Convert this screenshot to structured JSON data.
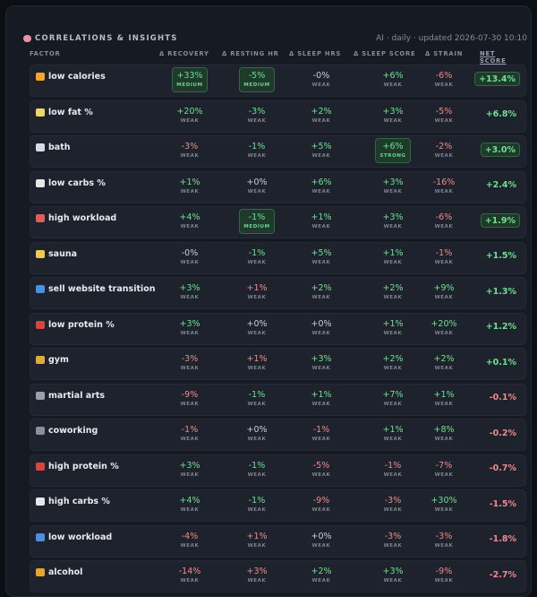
{
  "header": {
    "title": "CORRELATIONS & INSIGHTS",
    "meta": "AI · daily · updated 2026-07-30 10:10"
  },
  "columns": {
    "factor": "FACTOR",
    "recovery": "Δ RECOVERY",
    "resting_hr": "Δ RESTING HR",
    "sleep_hrs": "Δ SLEEP HRS",
    "sleep_score": "Δ SLEEP SCORE",
    "strain": "Δ STRAIN",
    "net_score": "NET SCORE"
  },
  "rows": [
    {
      "factor": "low calories",
      "icon": "fire-icon",
      "icon_color": "#f5a623",
      "cells": [
        [
          "+33%",
          "MEDIUM",
          "pos",
          true
        ],
        [
          "-5%",
          "MEDIUM",
          "pos",
          true
        ],
        [
          "-0%",
          "WEAK",
          "neu",
          false
        ],
        [
          "+6%",
          "WEAK",
          "pos",
          false
        ],
        [
          "-6%",
          "WEAK",
          "neg",
          false
        ]
      ],
      "net": "+13.4%",
      "net_tone": "pos",
      "net_hl": true
    },
    {
      "factor": "low fat %",
      "icon": "butter-icon",
      "icon_color": "#f3d46b",
      "cells": [
        [
          "+20%",
          "WEAK",
          "pos",
          false
        ],
        [
          "-3%",
          "WEAK",
          "pos",
          false
        ],
        [
          "+2%",
          "WEAK",
          "pos",
          false
        ],
        [
          "+3%",
          "WEAK",
          "pos",
          false
        ],
        [
          "-5%",
          "WEAK",
          "neg",
          false
        ]
      ],
      "net": "+6.8%",
      "net_tone": "pos",
      "net_hl": false
    },
    {
      "factor": "bath",
      "icon": "bath-icon",
      "icon_color": "#d7dde6",
      "cells": [
        [
          "-3%",
          "WEAK",
          "neg",
          false
        ],
        [
          "-1%",
          "WEAK",
          "pos",
          false
        ],
        [
          "+5%",
          "WEAK",
          "pos",
          false
        ],
        [
          "+6%",
          "STRONG",
          "pos",
          true
        ],
        [
          "-2%",
          "WEAK",
          "neg",
          false
        ]
      ],
      "net": "+3.0%",
      "net_tone": "pos",
      "net_hl": true
    },
    {
      "factor": "low carbs %",
      "icon": "rice-icon",
      "icon_color": "#e7e7e7",
      "cells": [
        [
          "+1%",
          "WEAK",
          "pos",
          false
        ],
        [
          "+0%",
          "WEAK",
          "neu",
          false
        ],
        [
          "+6%",
          "WEAK",
          "pos",
          false
        ],
        [
          "+3%",
          "WEAK",
          "pos",
          false
        ],
        [
          "-16%",
          "WEAK",
          "neg",
          false
        ]
      ],
      "net": "+2.4%",
      "net_tone": "pos",
      "net_hl": false
    },
    {
      "factor": "high workload",
      "icon": "chart-up-icon",
      "icon_color": "#e35b5b",
      "cells": [
        [
          "+4%",
          "WEAK",
          "pos",
          false
        ],
        [
          "-1%",
          "MEDIUM",
          "pos",
          true
        ],
        [
          "+1%",
          "WEAK",
          "pos",
          false
        ],
        [
          "+3%",
          "WEAK",
          "pos",
          false
        ],
        [
          "-6%",
          "WEAK",
          "neg",
          false
        ]
      ],
      "net": "+1.9%",
      "net_tone": "pos",
      "net_hl": true
    },
    {
      "factor": "sauna",
      "icon": "sauna-icon",
      "icon_color": "#f2c94c",
      "cells": [
        [
          "-0%",
          "WEAK",
          "neu",
          false
        ],
        [
          "-1%",
          "WEAK",
          "pos",
          false
        ],
        [
          "+5%",
          "WEAK",
          "pos",
          false
        ],
        [
          "+1%",
          "WEAK",
          "pos",
          false
        ],
        [
          "-1%",
          "WEAK",
          "neg",
          false
        ]
      ],
      "net": "+1.5%",
      "net_tone": "pos",
      "net_hl": false
    },
    {
      "factor": "sell website transition",
      "icon": "repeat-icon",
      "icon_color": "#4a90e2",
      "cells": [
        [
          "+3%",
          "WEAK",
          "pos",
          false
        ],
        [
          "+1%",
          "WEAK",
          "neg",
          false
        ],
        [
          "+2%",
          "WEAK",
          "pos",
          false
        ],
        [
          "+2%",
          "WEAK",
          "pos",
          false
        ],
        [
          "+9%",
          "WEAK",
          "pos",
          false
        ]
      ],
      "net": "+1.3%",
      "net_tone": "pos",
      "net_hl": false
    },
    {
      "factor": "low protein %",
      "icon": "meat-icon",
      "icon_color": "#d9443f",
      "cells": [
        [
          "+3%",
          "WEAK",
          "pos",
          false
        ],
        [
          "+0%",
          "WEAK",
          "neu",
          false
        ],
        [
          "+0%",
          "WEAK",
          "neu",
          false
        ],
        [
          "+1%",
          "WEAK",
          "pos",
          false
        ],
        [
          "+20%",
          "WEAK",
          "pos",
          false
        ]
      ],
      "net": "+1.2%",
      "net_tone": "pos",
      "net_hl": false
    },
    {
      "factor": "gym",
      "icon": "weightlifter-icon",
      "icon_color": "#e0a93b",
      "cells": [
        [
          "-3%",
          "WEAK",
          "neg",
          false
        ],
        [
          "+1%",
          "WEAK",
          "neg",
          false
        ],
        [
          "+3%",
          "WEAK",
          "pos",
          false
        ],
        [
          "+2%",
          "WEAK",
          "pos",
          false
        ],
        [
          "+2%",
          "WEAK",
          "pos",
          false
        ]
      ],
      "net": "+0.1%",
      "net_tone": "pos",
      "net_hl": false
    },
    {
      "factor": "martial arts",
      "icon": "dot-icon",
      "icon_color": "#9aa1ad",
      "cells": [
        [
          "-9%",
          "WEAK",
          "neg",
          false
        ],
        [
          "-1%",
          "WEAK",
          "pos",
          false
        ],
        [
          "+1%",
          "WEAK",
          "pos",
          false
        ],
        [
          "+7%",
          "WEAK",
          "pos",
          false
        ],
        [
          "+1%",
          "WEAK",
          "pos",
          false
        ]
      ],
      "net": "-0.1%",
      "net_tone": "neg",
      "net_hl": false
    },
    {
      "factor": "coworking",
      "icon": "laptop-icon",
      "icon_color": "#8a8f98",
      "cells": [
        [
          "-1%",
          "WEAK",
          "neg",
          false
        ],
        [
          "+0%",
          "WEAK",
          "neu",
          false
        ],
        [
          "-1%",
          "WEAK",
          "neg",
          false
        ],
        [
          "+1%",
          "WEAK",
          "pos",
          false
        ],
        [
          "+8%",
          "WEAK",
          "pos",
          false
        ]
      ],
      "net": "-0.2%",
      "net_tone": "neg",
      "net_hl": false
    },
    {
      "factor": "high protein %",
      "icon": "meat-icon",
      "icon_color": "#d9443f",
      "cells": [
        [
          "+3%",
          "WEAK",
          "pos",
          false
        ],
        [
          "-1%",
          "WEAK",
          "pos",
          false
        ],
        [
          "-5%",
          "WEAK",
          "neg",
          false
        ],
        [
          "-1%",
          "WEAK",
          "neg",
          false
        ],
        [
          "-7%",
          "WEAK",
          "neg",
          false
        ]
      ],
      "net": "-0.7%",
      "net_tone": "neg",
      "net_hl": false
    },
    {
      "factor": "high carbs %",
      "icon": "rice-icon",
      "icon_color": "#e7e7e7",
      "cells": [
        [
          "+4%",
          "WEAK",
          "pos",
          false
        ],
        [
          "-1%",
          "WEAK",
          "pos",
          false
        ],
        [
          "-9%",
          "WEAK",
          "neg",
          false
        ],
        [
          "-3%",
          "WEAK",
          "neg",
          false
        ],
        [
          "+30%",
          "WEAK",
          "pos",
          false
        ]
      ],
      "net": "-1.5%",
      "net_tone": "neg",
      "net_hl": false
    },
    {
      "factor": "low workload",
      "icon": "chart-down-icon",
      "icon_color": "#4a90e2",
      "cells": [
        [
          "-4%",
          "WEAK",
          "neg",
          false
        ],
        [
          "+1%",
          "WEAK",
          "neg",
          false
        ],
        [
          "+0%",
          "WEAK",
          "neu",
          false
        ],
        [
          "-3%",
          "WEAK",
          "neg",
          false
        ],
        [
          "-3%",
          "WEAK",
          "neg",
          false
        ]
      ],
      "net": "-1.8%",
      "net_tone": "neg",
      "net_hl": false
    },
    {
      "factor": "alcohol",
      "icon": "beer-icon",
      "icon_color": "#e5a530",
      "cells": [
        [
          "-14%",
          "WEAK",
          "neg",
          false
        ],
        [
          "+3%",
          "WEAK",
          "neg",
          false
        ],
        [
          "+2%",
          "WEAK",
          "pos",
          false
        ],
        [
          "+3%",
          "WEAK",
          "pos",
          false
        ],
        [
          "-9%",
          "WEAK",
          "neg",
          false
        ]
      ],
      "net": "-2.7%",
      "net_tone": "neg",
      "net_hl": false
    }
  ]
}
